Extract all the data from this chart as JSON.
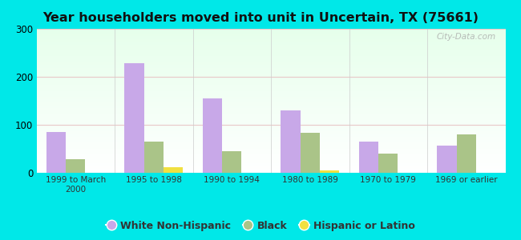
{
  "title": "Year householders moved into unit in Uncertain, TX (75661)",
  "categories": [
    "1999 to March\n2000",
    "1995 to 1998",
    "1990 to 1994",
    "1980 to 1989",
    "1970 to 1979",
    "1969 or earlier"
  ],
  "white": [
    85,
    228,
    155,
    130,
    65,
    57
  ],
  "black": [
    28,
    65,
    45,
    83,
    40,
    80
  ],
  "hispanic": [
    0,
    12,
    0,
    5,
    0,
    0
  ],
  "white_color": "#c8a8e8",
  "black_color": "#aac488",
  "hispanic_color": "#f0e040",
  "outer_background": "#00e8e8",
  "ylim": [
    0,
    300
  ],
  "yticks": [
    0,
    100,
    200,
    300
  ],
  "bar_width": 0.25,
  "legend_labels": [
    "White Non-Hispanic",
    "Black",
    "Hispanic or Latino"
  ]
}
